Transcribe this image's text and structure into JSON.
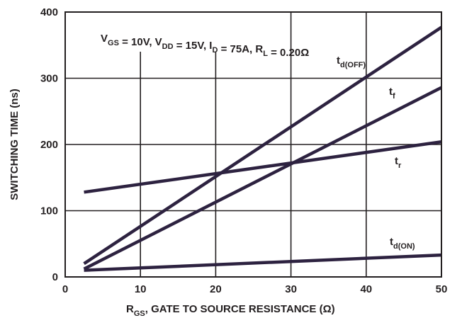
{
  "chart_data": {
    "type": "line",
    "xlabel": "R_GS, GATE TO SOURCE RESISTANCE (Ω)",
    "xlabel_parts": {
      "main": "R",
      "sub": "GS",
      "rest": ", GATE TO SOURCE RESISTANCE (Ω)"
    },
    "ylabel": "SWITCHING TIME (ns)",
    "xlim": [
      0,
      50
    ],
    "ylim": [
      0,
      400
    ],
    "xticks": [
      0,
      10,
      20,
      30,
      40,
      50
    ],
    "yticks": [
      0,
      100,
      200,
      300,
      400
    ],
    "grid": true,
    "conditions": {
      "text": "V_GS = 10V, V_DD = 15V, I_D = 75A, R_L = 0.20Ω",
      "parts": [
        {
          "t": "V"
        },
        {
          "t": "GS",
          "sub": true
        },
        {
          "t": " = 10V, V"
        },
        {
          "t": "DD",
          "sub": true
        },
        {
          "t": " = 15V,  I"
        },
        {
          "t": "D",
          "sub": true
        },
        {
          "t": " = 75A, R"
        },
        {
          "t": "L",
          "sub": true
        },
        {
          "t": " = 0.20Ω"
        }
      ]
    },
    "series": [
      {
        "name": "t_d(OFF)",
        "label_main": "t",
        "label_sub": "d(OFF)",
        "x": [
          2.5,
          50
        ],
        "y": [
          20,
          377
        ]
      },
      {
        "name": "t_f",
        "label_main": "t",
        "label_sub": "f",
        "x": [
          2.5,
          50
        ],
        "y": [
          12,
          286
        ]
      },
      {
        "name": "t_r",
        "label_main": "t",
        "label_sub": "r",
        "x": [
          2.5,
          50
        ],
        "y": [
          128,
          204
        ]
      },
      {
        "name": "t_d(ON)",
        "label_main": "t",
        "label_sub": "d(ON)",
        "x": [
          2.5,
          50
        ],
        "y": [
          10,
          33
        ]
      }
    ],
    "colors": {
      "line": "#2d2240",
      "axis": "#231f20",
      "text": "#231f20"
    }
  }
}
